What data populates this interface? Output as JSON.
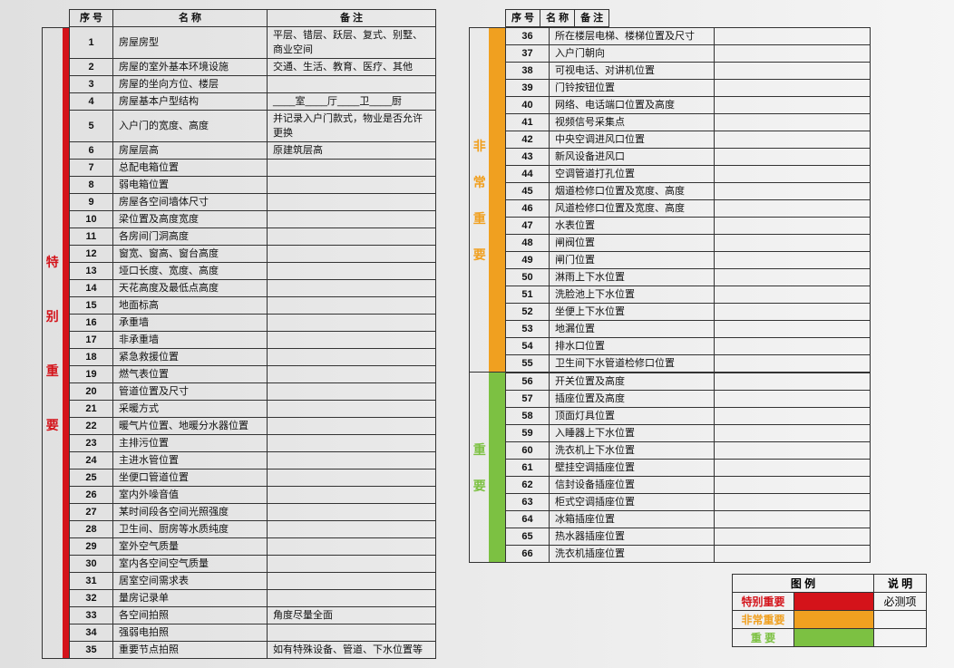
{
  "colors": {
    "red": "#d4131a",
    "orange": "#f0a020",
    "green": "#7cc142",
    "border": "#333333",
    "text": "#111111"
  },
  "leftTable": {
    "headers": {
      "sn": "序 号",
      "name": "名 称",
      "note": "备 注"
    },
    "sideLabel": [
      "特",
      "别",
      "重",
      "要"
    ],
    "sideColor": "#d4131a",
    "rows": [
      {
        "sn": "1",
        "name": "房屋房型",
        "note": "平层、错层、跃层、复式、别墅、商业空间"
      },
      {
        "sn": "2",
        "name": "房屋的室外基本环境设施",
        "note": "交通、生活、教育、医疗、其他"
      },
      {
        "sn": "3",
        "name": "房屋的坐向方位、楼层",
        "note": ""
      },
      {
        "sn": "4",
        "name": "房屋基本户型结构",
        "note": "____室____厅____卫____厨"
      },
      {
        "sn": "5",
        "name": "入户门的宽度、高度",
        "note": "并记录入户门款式，物业是否允许更换"
      },
      {
        "sn": "6",
        "name": "房屋层高",
        "note": "原建筑层高"
      },
      {
        "sn": "7",
        "name": "总配电箱位置",
        "note": ""
      },
      {
        "sn": "8",
        "name": "弱电箱位置",
        "note": ""
      },
      {
        "sn": "9",
        "name": "房屋各空间墙体尺寸",
        "note": ""
      },
      {
        "sn": "10",
        "name": "梁位置及高度宽度",
        "note": ""
      },
      {
        "sn": "11",
        "name": "各房间门洞高度",
        "note": ""
      },
      {
        "sn": "12",
        "name": "窗宽、窗高、窗台高度",
        "note": ""
      },
      {
        "sn": "13",
        "name": "垭口长度、宽度、高度",
        "note": ""
      },
      {
        "sn": "14",
        "name": "天花高度及最低点高度",
        "note": ""
      },
      {
        "sn": "15",
        "name": "地面标高",
        "note": ""
      },
      {
        "sn": "16",
        "name": "承重墙",
        "note": ""
      },
      {
        "sn": "17",
        "name": "非承重墙",
        "note": ""
      },
      {
        "sn": "18",
        "name": "紧急救援位置",
        "note": ""
      },
      {
        "sn": "19",
        "name": "燃气表位置",
        "note": ""
      },
      {
        "sn": "20",
        "name": "管道位置及尺寸",
        "note": ""
      },
      {
        "sn": "21",
        "name": "采暖方式",
        "note": ""
      },
      {
        "sn": "22",
        "name": "暖气片位置、地暖分水器位置",
        "note": ""
      },
      {
        "sn": "23",
        "name": "主排污位置",
        "note": ""
      },
      {
        "sn": "24",
        "name": "主进水管位置",
        "note": ""
      },
      {
        "sn": "25",
        "name": "坐便口管道位置",
        "note": ""
      },
      {
        "sn": "26",
        "name": "室内外噪音值",
        "note": ""
      },
      {
        "sn": "27",
        "name": "某时间段各空间光照强度",
        "note": ""
      },
      {
        "sn": "28",
        "name": "卫生间、厨房等水质纯度",
        "note": ""
      },
      {
        "sn": "29",
        "name": "室外空气质量",
        "note": ""
      },
      {
        "sn": "30",
        "name": "室内各空间空气质量",
        "note": ""
      },
      {
        "sn": "31",
        "name": "居室空间需求表",
        "note": ""
      },
      {
        "sn": "32",
        "name": "量房记录单",
        "note": ""
      },
      {
        "sn": "33",
        "name": "各空间拍照",
        "note": "角度尽量全面"
      },
      {
        "sn": "34",
        "name": "强弱电拍照",
        "note": ""
      },
      {
        "sn": "35",
        "name": "重要节点拍照",
        "note": "如有特殊设备、管道、下水位置等"
      }
    ]
  },
  "rightTable": {
    "headers": {
      "sn": "序 号",
      "name": "名 称",
      "note": "备 注"
    },
    "groups": [
      {
        "sideLabel": [
          "非",
          "常",
          "重",
          "要"
        ],
        "sideColor": "#f0a020",
        "rows": [
          {
            "sn": "36",
            "name": "所在楼层电梯、楼梯位置及尺寸",
            "note": ""
          },
          {
            "sn": "37",
            "name": "入户门朝向",
            "note": ""
          },
          {
            "sn": "38",
            "name": "可视电话、对讲机位置",
            "note": ""
          },
          {
            "sn": "39",
            "name": "门铃按钮位置",
            "note": ""
          },
          {
            "sn": "40",
            "name": "网络、电话端口位置及高度",
            "note": ""
          },
          {
            "sn": "41",
            "name": "视频信号采集点",
            "note": ""
          },
          {
            "sn": "42",
            "name": "中央空调进风口位置",
            "note": ""
          },
          {
            "sn": "43",
            "name": "新风设备进风口",
            "note": ""
          },
          {
            "sn": "44",
            "name": "空调管道打孔位置",
            "note": ""
          },
          {
            "sn": "45",
            "name": "烟道检修口位置及宽度、高度",
            "note": ""
          },
          {
            "sn": "46",
            "name": "风道检修口位置及宽度、高度",
            "note": ""
          },
          {
            "sn": "47",
            "name": "水表位置",
            "note": ""
          },
          {
            "sn": "48",
            "name": "闸阀位置",
            "note": ""
          },
          {
            "sn": "49",
            "name": "闸门位置",
            "note": ""
          },
          {
            "sn": "50",
            "name": "淋雨上下水位置",
            "note": ""
          },
          {
            "sn": "51",
            "name": "洗脸池上下水位置",
            "note": ""
          },
          {
            "sn": "52",
            "name": "坐便上下水位置",
            "note": ""
          },
          {
            "sn": "53",
            "name": "地漏位置",
            "note": ""
          },
          {
            "sn": "54",
            "name": "排水口位置",
            "note": ""
          },
          {
            "sn": "55",
            "name": "卫生间下水管道检修口位置",
            "note": ""
          }
        ]
      },
      {
        "sideLabel": [
          "重",
          "要"
        ],
        "sideColor": "#7cc142",
        "rows": [
          {
            "sn": "56",
            "name": "开关位置及高度",
            "note": ""
          },
          {
            "sn": "57",
            "name": "插座位置及高度",
            "note": ""
          },
          {
            "sn": "58",
            "name": "顶面灯具位置",
            "note": ""
          },
          {
            "sn": "59",
            "name": "入睡器上下水位置",
            "note": ""
          },
          {
            "sn": "60",
            "name": "洗衣机上下水位置",
            "note": ""
          },
          {
            "sn": "61",
            "name": "壁挂空调插座位置",
            "note": ""
          },
          {
            "sn": "62",
            "name": "信封设备插座位置",
            "note": ""
          },
          {
            "sn": "63",
            "name": "柜式空调插座位置",
            "note": ""
          },
          {
            "sn": "64",
            "name": "冰箱插座位置",
            "note": ""
          },
          {
            "sn": "65",
            "name": "热水器插座位置",
            "note": ""
          },
          {
            "sn": "66",
            "name": "洗衣机插座位置",
            "note": ""
          }
        ]
      }
    ]
  },
  "legend": {
    "headers": {
      "c1": "图 例",
      "c2": "说 明"
    },
    "rows": [
      {
        "label": "特别重要",
        "labelClass": "txt-red",
        "swatchClass": "sw-red",
        "desc": "必测项"
      },
      {
        "label": "非常重要",
        "labelClass": "txt-orange",
        "swatchClass": "sw-orange",
        "desc": ""
      },
      {
        "label": "重   要",
        "labelClass": "txt-green",
        "swatchClass": "sw-green",
        "desc": ""
      }
    ]
  }
}
